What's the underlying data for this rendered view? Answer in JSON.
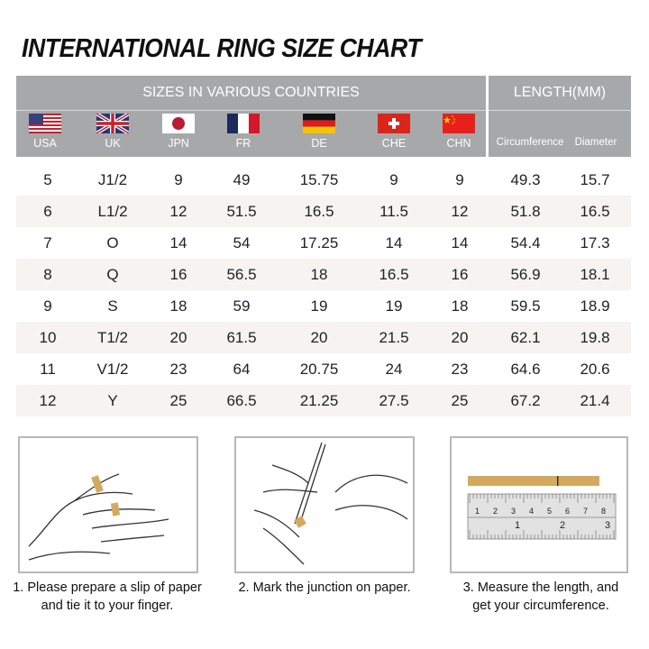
{
  "title": "INTERNATIONAL RING SIZE CHART",
  "header": {
    "sizes_label": "SIZES IN VARIOUS COUNTRIES",
    "length_label": "LENGTH(MM)",
    "countries": [
      "USA",
      "UK",
      "JPN",
      "FR",
      "DE",
      "CHE",
      "CHN"
    ],
    "length_columns": [
      "Circumference",
      "Diameter"
    ]
  },
  "rows": [
    [
      "5",
      "J1/2",
      "9",
      "49",
      "15.75",
      "9",
      "9",
      "49.3",
      "15.7"
    ],
    [
      "6",
      "L1/2",
      "12",
      "51.5",
      "16.5",
      "11.5",
      "12",
      "51.8",
      "16.5"
    ],
    [
      "7",
      "O",
      "14",
      "54",
      "17.25",
      "14",
      "14",
      "54.4",
      "17.3"
    ],
    [
      "8",
      "Q",
      "16",
      "56.5",
      "18",
      "16.5",
      "16",
      "56.9",
      "18.1"
    ],
    [
      "9",
      "S",
      "18",
      "59",
      "19",
      "19",
      "18",
      "59.5",
      "18.9"
    ],
    [
      "10",
      "T1/2",
      "20",
      "61.5",
      "20",
      "21.5",
      "20",
      "62.1",
      "19.8"
    ],
    [
      "11",
      "V1/2",
      "23",
      "64",
      "20.75",
      "24",
      "23",
      "64.6",
      "20.6"
    ],
    [
      "12",
      "Y",
      "25",
      "66.5",
      "21.25",
      "27.5",
      "25",
      "67.2",
      "21.4"
    ]
  ],
  "steps": [
    {
      "line1": "1. Please prepare a slip of paper",
      "line2": "and tie it to your finger."
    },
    {
      "line1": "2. Mark the junction on paper.",
      "line2": ""
    },
    {
      "line1": "3. Measure the length, and",
      "line2": "get your circumference."
    }
  ],
  "ruler": {
    "top_marks": [
      "1",
      "2",
      "3",
      "4",
      "5",
      "6",
      "7",
      "8"
    ],
    "bottom_marks": [
      "1",
      "2",
      "3"
    ],
    "unit": "mm"
  },
  "colors": {
    "header_bg": "#a7a8aa",
    "alt_row": "#f6f3f1",
    "paper_strip": "#d4a95e"
  }
}
